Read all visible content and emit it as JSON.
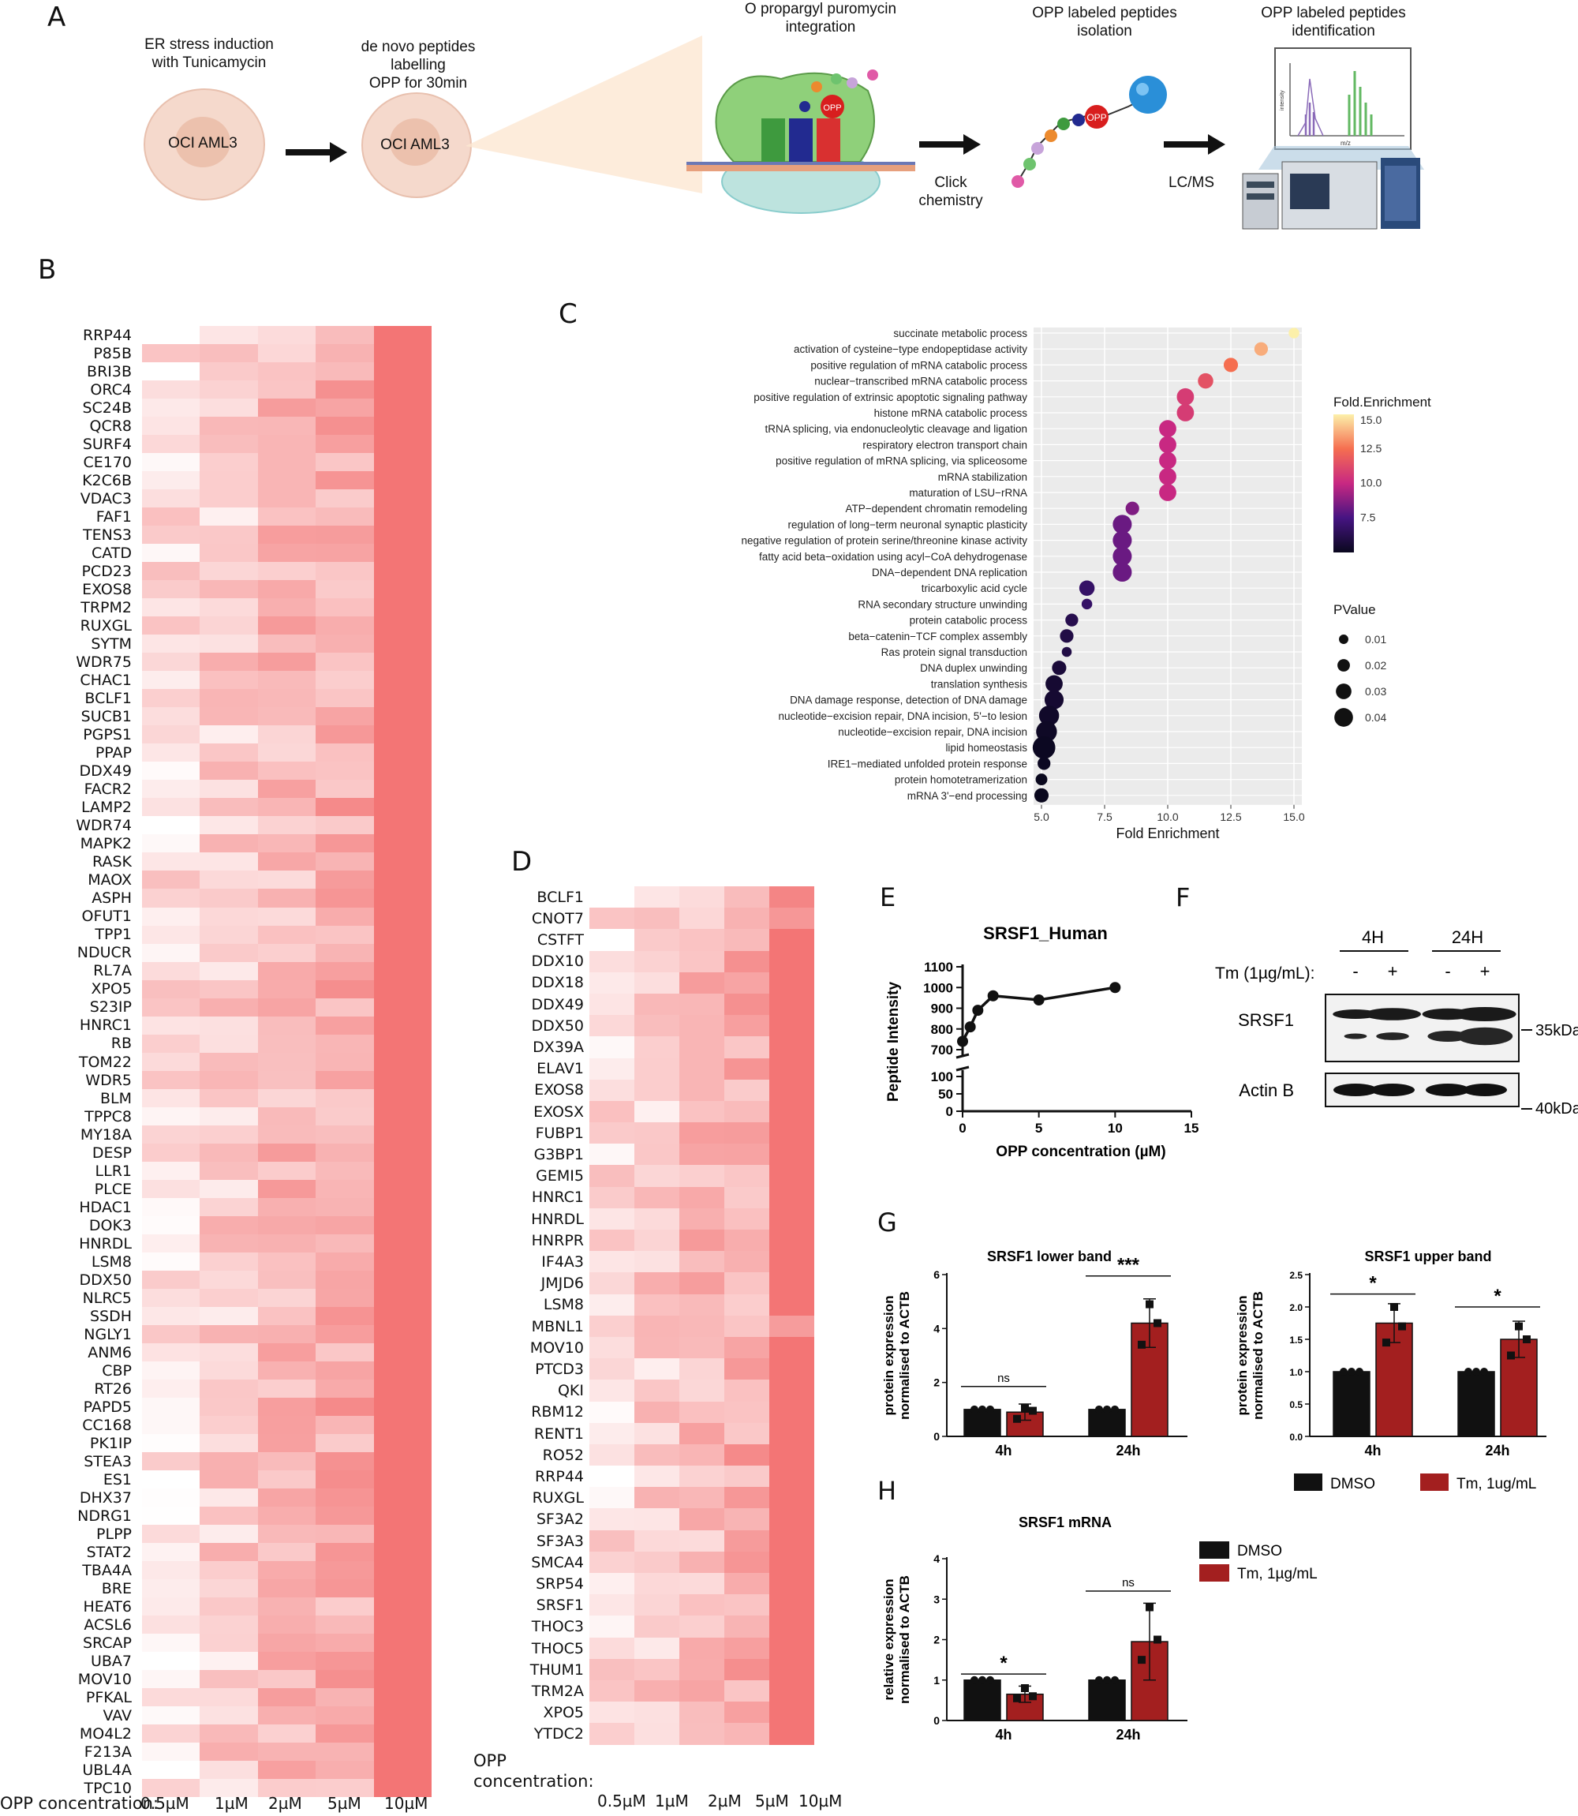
{
  "panel_labels": {
    "a": "A",
    "b": "B",
    "c": "C",
    "d": "D",
    "e": "E",
    "f": "F",
    "g": "G",
    "h": "H"
  },
  "colors": {
    "heat_low": "#ffffff",
    "heat_high": "#f37575",
    "black": "#111111",
    "red": "#a31f1f"
  },
  "panel_a": {
    "step1": "ER stress induction\nwith Tunicamycin",
    "step2": "de novo peptides\nlabelling\nOPP for 30min",
    "cell_label": "OCI AML3",
    "step3": "O propargyl puromycin\nintegration",
    "opp_badge": "OPP",
    "click": "Click\nchemistry",
    "step4": "OPP labeled peptides\nisolation",
    "lcms": "LC/MS",
    "step5": "OPP labeled peptides\nidentification",
    "ms_ylabel": "intensity",
    "ms_xlabel": "m/z"
  },
  "panel_b": {
    "genes": [
      "RRP44",
      "P85B",
      "BRI3B",
      "ORC4",
      "SC24B",
      "QCR8",
      "SURF4",
      "CE170",
      "K2C6B",
      "VDAC3",
      "FAF1",
      "TENS3",
      "CATD",
      "PCD23",
      "EXOS8",
      "TRPM2",
      "RUXGL",
      "SYTM",
      "WDR75",
      "CHAC1",
      "BCLF1",
      "SUCB1",
      "PGPS1",
      "PPAP",
      "DDX49",
      "FACR2",
      "LAMP2",
      "WDR74",
      "MAPK2",
      "RASK",
      "MAOX",
      "ASPH",
      "OFUT1",
      "TPP1",
      "NDUCR",
      "RL7A",
      "XPO5",
      "S23IP",
      "HNRC1",
      "RB",
      "TOM22",
      "WDR5",
      "BLM",
      "TPPC8",
      "MY18A",
      "DESP",
      "LLR1",
      "PLCE",
      "HDAC1",
      "DOK3",
      "HNRDL",
      "LSM8",
      "DDX50",
      "NLRC5",
      "SSDH",
      "NGLY1",
      "ANM6",
      "CBP",
      "RT26",
      "PAPD5",
      "CC168",
      "PK1IP",
      "STEA3",
      "ES1",
      "DHX37",
      "NDRG1",
      "PLPP",
      "STAT2",
      "TBA4A",
      "BRE",
      "HEAT6",
      "ACSL6",
      "SRCAP",
      "UBA7",
      "MOV10",
      "PFKAL",
      "VAV",
      "MO4L2",
      "F213A",
      "UBL4A",
      "TPC10"
    ],
    "footer_label": "OPP concentration:",
    "columns": [
      "0.5µM",
      "1µM",
      "2µM",
      "5µM",
      "10µM"
    ]
  },
  "panel_c": {
    "terms": [
      "succinate metabolic process",
      "activation of cysteine−type endopeptidase activity",
      "positive regulation of mRNA catabolic process",
      "nuclear−transcribed mRNA catabolic process",
      "positive regulation of extrinsic apoptotic signaling pathway",
      "histone mRNA catabolic process",
      "tRNA splicing, via endonucleolytic cleavage and ligation",
      "respiratory electron transport chain",
      "positive regulation of mRNA splicing, via spliceosome",
      "mRNA stabilization",
      "maturation of LSU−rRNA",
      "ATP−dependent chromatin remodeling",
      "regulation of long−term neuronal synaptic plasticity",
      "negative regulation of protein serine/threonine kinase activity",
      "fatty acid beta−oxidation using acyl−CoA dehydrogenase",
      "DNA−dependent DNA replication",
      "tricarboxylic acid cycle",
      "RNA secondary structure unwinding",
      "protein catabolic process",
      "beta−catenin−TCF complex assembly",
      "Ras protein signal transduction",
      "DNA duplex unwinding",
      "translation synthesis",
      "DNA damage response, detection of DNA damage",
      "nucleotide−excision repair, DNA incision, 5'−to lesion",
      "nucleotide−excision repair, DNA incision",
      "lipid homeostasis",
      "IRE1−mediated unfolded protein response",
      "protein homotetramerization",
      "mRNA 3'−end processing"
    ],
    "xlabel": "Fold Enrichment",
    "xticks": [
      "5.0",
      "7.5",
      "10.0",
      "12.5",
      "15.0"
    ],
    "legend_color_title": "Fold.Enrichment",
    "legend_color_ticks": [
      "15.0",
      "12.5",
      "10.0",
      "7.5"
    ],
    "legend_size_title": "PValue",
    "legend_size_ticks": [
      "0.01",
      "0.02",
      "0.03",
      "0.04"
    ]
  },
  "panel_d": {
    "genes": [
      "BCLF1",
      "CNOT7",
      "CSTFT",
      "DDX10",
      "DDX18",
      "DDX49",
      "DDX50",
      "DX39A",
      "ELAV1",
      "EXOS8",
      "EXOSX",
      "FUBP1",
      "G3BP1",
      "GEMI5",
      "HNRC1",
      "HNRDL",
      "HNRPR",
      "IF4A3",
      "JMJD6",
      "LSM8",
      "MBNL1",
      "MOV10",
      "PTCD3",
      "QKI",
      "RBM12",
      "RENT1",
      "RO52",
      "RRP44",
      "RUXGL",
      "SF3A2",
      "SF3A3",
      "SMCA4",
      "SRP54",
      "SRSF1",
      "THOC3",
      "THOC5",
      "THUM1",
      "TRM2A",
      "XPO5",
      "YTDC2"
    ],
    "footer_label": "OPP\nconcentration:",
    "columns": [
      "0.5µM",
      "1µM",
      "2µM",
      "5µM",
      "10µM"
    ]
  },
  "panel_e": {
    "title": "SRSF1_Human",
    "ylabel": "Peptide Intensity",
    "xlabel": "OPP concentration (µM)",
    "yticks_upper": [
      "1100",
      "1000",
      "900",
      "800",
      "700"
    ],
    "yticks_lower": [
      "100",
      "50",
      "0"
    ],
    "xticks": [
      "0",
      "5",
      "10",
      "15"
    ]
  },
  "panel_f": {
    "times": [
      "4H",
      "24H"
    ],
    "tm_label": "Tm (1µg/mL):",
    "signs": [
      "-",
      "+",
      "-",
      "+"
    ],
    "band1": "SRSF1",
    "band2": "Actin B",
    "marker1": "35kDa",
    "marker2": "40kDa"
  },
  "panel_g": {
    "lower_title": "SRSF1 lower band",
    "upper_title": "SRSF1 upper band",
    "ylabel_line1": "protein expression",
    "ylabel_line2": "normalised to ACTB",
    "lower_yticks": [
      "6",
      "4",
      "2",
      "0"
    ],
    "upper_yticks": [
      "2.5",
      "2.0",
      "1.5",
      "1.0",
      "0.5",
      "0.0"
    ],
    "groups": [
      "4h",
      "24h"
    ],
    "lower_sig": [
      "ns",
      "***"
    ],
    "upper_sig": [
      "*",
      "*"
    ],
    "legend": [
      "DMSO",
      "Tm, 1ug/mL"
    ]
  },
  "panel_h": {
    "title": "SRSF1 mRNA",
    "ylabel_line1": "relative expression",
    "ylabel_line2": "normalised to ACTB",
    "yticks": [
      "4",
      "3",
      "2",
      "1",
      "0"
    ],
    "groups": [
      "4h",
      "24h"
    ],
    "sig": [
      "*",
      "ns"
    ],
    "legend": [
      "DMSO",
      "Tm, 1µg/mL"
    ]
  },
  "chart_data": [
    {
      "type": "scatter",
      "title": "",
      "xlabel": "Fold Enrichment",
      "xlim": [
        5,
        15
      ],
      "x": [
        15.0,
        13.7,
        12.5,
        11.5,
        10.7,
        10.7,
        10.0,
        10.0,
        10.0,
        10.0,
        10.0,
        8.6,
        8.2,
        8.2,
        8.2,
        8.2,
        6.8,
        6.8,
        6.2,
        6.0,
        6.0,
        5.7,
        5.5,
        5.5,
        5.3,
        5.2,
        5.1,
        5.1,
        5.0,
        5.0
      ],
      "pvalue": [
        0.012,
        0.02,
        0.022,
        0.025,
        0.03,
        0.03,
        0.03,
        0.03,
        0.03,
        0.03,
        0.03,
        0.02,
        0.035,
        0.035,
        0.035,
        0.035,
        0.025,
        0.012,
        0.018,
        0.02,
        0.01,
        0.022,
        0.03,
        0.035,
        0.038,
        0.04,
        0.045,
        0.018,
        0.015,
        0.022
      ]
    },
    {
      "type": "line",
      "title": "SRSF1_Human",
      "xlabel": "OPP concentration (µM)",
      "ylabel": "Peptide Intensity",
      "x": [
        0,
        0.5,
        1,
        2,
        5,
        10
      ],
      "values": [
        740,
        810,
        890,
        960,
        940,
        1000
      ]
    },
    {
      "type": "bar",
      "title": "SRSF1 lower band",
      "categories": [
        "4h",
        "24h"
      ],
      "ylim": [
        0,
        6
      ],
      "series": [
        {
          "name": "DMSO",
          "values": [
            1.0,
            1.0
          ]
        },
        {
          "name": "Tm, 1ug/mL",
          "values": [
            0.9,
            4.2
          ]
        }
      ]
    },
    {
      "type": "bar",
      "title": "SRSF1 upper band",
      "categories": [
        "4h",
        "24h"
      ],
      "ylim": [
        0,
        2.5
      ],
      "series": [
        {
          "name": "DMSO",
          "values": [
            1.0,
            1.0
          ]
        },
        {
          "name": "Tm, 1ug/mL",
          "values": [
            1.75,
            1.5
          ]
        }
      ]
    },
    {
      "type": "bar",
      "title": "SRSF1 mRNA",
      "categories": [
        "4h",
        "24h"
      ],
      "ylim": [
        0,
        4
      ],
      "series": [
        {
          "name": "DMSO",
          "values": [
            1.0,
            1.0
          ]
        },
        {
          "name": "Tm, 1µg/mL",
          "values": [
            0.65,
            1.95
          ]
        }
      ]
    }
  ]
}
